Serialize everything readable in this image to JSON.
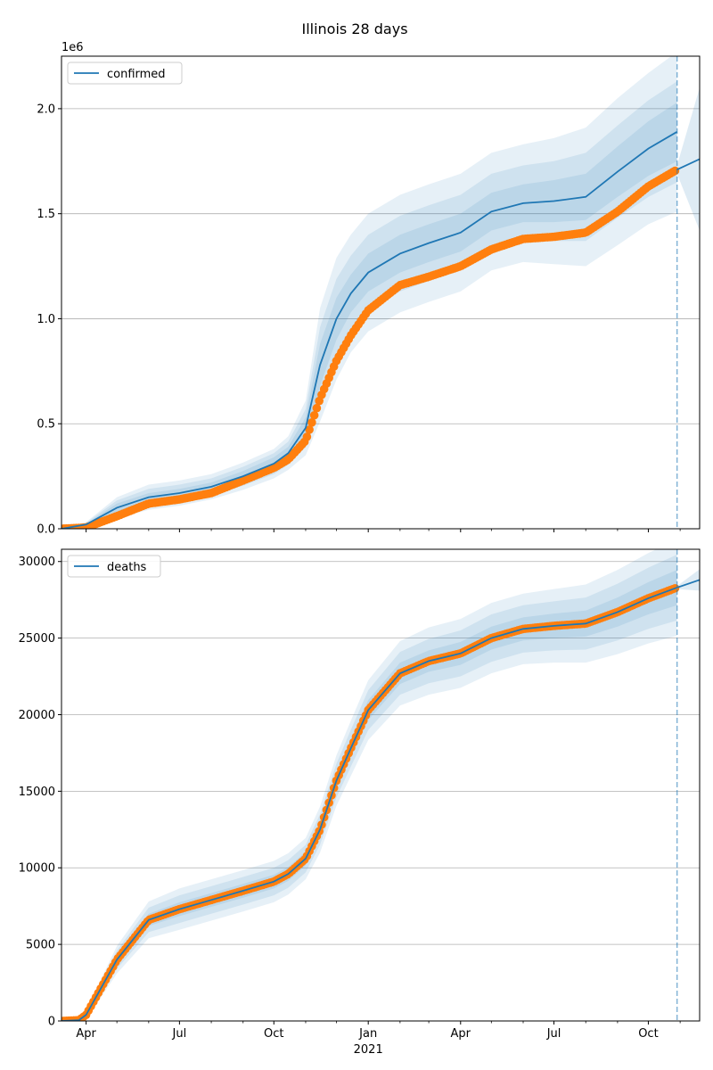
{
  "title": "Illinois 28 days",
  "colors": {
    "fit": "#1f77b4",
    "observed": "#ff7f0e",
    "band": "#1f77b4",
    "grid": "#b0b0b0"
  },
  "x_axis": {
    "start": "2020-03-08",
    "end": "2021-11-20",
    "ticks": [
      {
        "date": "2020-04-01",
        "label": "Apr"
      },
      {
        "date": "2020-07-01",
        "label": "Jul"
      },
      {
        "date": "2020-10-01",
        "label": "Oct"
      },
      {
        "date": "2021-01-01",
        "label": "Jan"
      },
      {
        "date": "2021-04-01",
        "label": "Apr"
      },
      {
        "date": "2021-07-01",
        "label": "Jul"
      },
      {
        "date": "2021-10-01",
        "label": "Oct"
      }
    ],
    "minor_ticks": [
      "2020-05-01",
      "2020-06-01",
      "2020-08-01",
      "2020-09-01",
      "2020-11-01",
      "2020-12-01",
      "2021-02-01",
      "2021-03-01",
      "2021-05-01",
      "2021-06-01",
      "2021-08-01",
      "2021-09-01",
      "2021-11-01"
    ],
    "year_label": "2021",
    "year_label_date": "2021-01-01"
  },
  "chart_data": [
    {
      "type": "line",
      "name": "confirmed",
      "legend": "confirmed",
      "legend_placement": "top-left",
      "grid": "horizontal",
      "offset_label": "1e6",
      "ylim": [
        0,
        2.25
      ],
      "yticks": [
        {
          "value": 0.0,
          "label": "0.0"
        },
        {
          "value": 0.5,
          "label": "0.5"
        },
        {
          "value": 1.0,
          "label": "1.0"
        },
        {
          "value": 1.5,
          "label": "1.5"
        },
        {
          "value": 2.0,
          "label": "2.0"
        }
      ],
      "forecast_date": "2021-10-29",
      "fit": {
        "x": [
          "2020-03-08",
          "2020-04-01",
          "2020-05-01",
          "2020-06-01",
          "2020-07-01",
          "2020-08-01",
          "2020-09-01",
          "2020-10-01",
          "2020-10-15",
          "2020-11-01",
          "2020-11-15",
          "2020-12-01",
          "2020-12-15",
          "2021-01-01",
          "2021-02-01",
          "2021-03-01",
          "2021-04-01",
          "2021-05-01",
          "2021-06-01",
          "2021-07-01",
          "2021-08-01",
          "2021-09-01",
          "2021-10-01",
          "2021-10-29"
        ],
        "y": [
          0.0,
          0.02,
          0.1,
          0.15,
          0.17,
          0.2,
          0.25,
          0.31,
          0.36,
          0.48,
          0.78,
          1.0,
          1.12,
          1.22,
          1.31,
          1.36,
          1.41,
          1.51,
          1.55,
          1.56,
          1.58,
          1.7,
          1.81,
          1.89
        ],
        "band_inner_halfwidth": [
          0.0,
          0.004,
          0.02,
          0.02,
          0.02,
          0.02,
          0.025,
          0.03,
          0.03,
          0.05,
          0.1,
          0.1,
          0.09,
          0.09,
          0.09,
          0.09,
          0.09,
          0.09,
          0.09,
          0.1,
          0.11,
          0.12,
          0.13,
          0.14
        ],
        "band_mid_halfwidth": [
          0.0,
          0.008,
          0.035,
          0.04,
          0.04,
          0.04,
          0.045,
          0.05,
          0.055,
          0.09,
          0.18,
          0.19,
          0.18,
          0.18,
          0.18,
          0.18,
          0.18,
          0.18,
          0.18,
          0.19,
          0.21,
          0.22,
          0.23,
          0.24
        ],
        "band_outer_halfwidth": [
          0.0,
          0.012,
          0.05,
          0.06,
          0.06,
          0.06,
          0.065,
          0.07,
          0.08,
          0.13,
          0.27,
          0.29,
          0.28,
          0.28,
          0.28,
          0.28,
          0.28,
          0.28,
          0.28,
          0.3,
          0.33,
          0.35,
          0.36,
          0.38
        ]
      },
      "forecast": {
        "x": [
          "2021-10-29",
          "2021-11-20"
        ],
        "y": [
          1.71,
          1.76
        ],
        "band_halfwidth": [
          0.02,
          0.34
        ]
      },
      "observed": {
        "x": [
          "2020-03-08",
          "2020-04-01",
          "2020-05-01",
          "2020-06-01",
          "2020-07-01",
          "2020-08-01",
          "2020-09-01",
          "2020-10-01",
          "2020-10-15",
          "2020-11-01",
          "2020-11-15",
          "2020-12-01",
          "2020-12-15",
          "2021-01-01",
          "2021-02-01",
          "2021-03-01",
          "2021-04-01",
          "2021-05-01",
          "2021-06-01",
          "2021-07-01",
          "2021-08-01",
          "2021-09-01",
          "2021-10-01",
          "2021-10-29"
        ],
        "y": [
          0.0,
          0.006,
          0.06,
          0.12,
          0.14,
          0.17,
          0.23,
          0.29,
          0.33,
          0.42,
          0.62,
          0.8,
          0.92,
          1.04,
          1.16,
          1.2,
          1.25,
          1.33,
          1.38,
          1.39,
          1.41,
          1.51,
          1.63,
          1.71
        ]
      }
    },
    {
      "type": "line",
      "name": "deaths",
      "legend": "deaths",
      "legend_placement": "top-left",
      "grid": "horizontal",
      "ylim": [
        0,
        30800
      ],
      "yticks": [
        {
          "value": 0,
          "label": "0"
        },
        {
          "value": 5000,
          "label": "5000"
        },
        {
          "value": 10000,
          "label": "10000"
        },
        {
          "value": 15000,
          "label": "15000"
        },
        {
          "value": 20000,
          "label": "20000"
        },
        {
          "value": 25000,
          "label": "25000"
        },
        {
          "value": 30000,
          "label": "30000"
        }
      ],
      "forecast_date": "2021-10-29",
      "fit": {
        "x": [
          "2020-03-08",
          "2020-03-25",
          "2020-04-01",
          "2020-05-01",
          "2020-06-01",
          "2020-07-01",
          "2020-08-01",
          "2020-09-01",
          "2020-10-01",
          "2020-10-15",
          "2020-11-01",
          "2020-11-15",
          "2020-12-01",
          "2020-12-15",
          "2021-01-01",
          "2021-02-01",
          "2021-03-01",
          "2021-04-01",
          "2021-05-01",
          "2021-06-01",
          "2021-07-01",
          "2021-08-01",
          "2021-09-01",
          "2021-10-01",
          "2021-10-29"
        ],
        "y": [
          0,
          50,
          400,
          4000,
          6600,
          7300,
          7900,
          8500,
          9100,
          9600,
          10600,
          12500,
          15700,
          17800,
          20300,
          22700,
          23500,
          24000,
          25000,
          25600,
          25800,
          25950,
          26700,
          27600,
          28300
        ],
        "band_inner_halfwidth": [
          0,
          20,
          100,
          300,
          400,
          450,
          450,
          450,
          450,
          450,
          450,
          500,
          550,
          600,
          650,
          700,
          700,
          750,
          750,
          750,
          800,
          850,
          950,
          1050,
          1150
        ],
        "band_mid_halfwidth": [
          0,
          40,
          200,
          600,
          800,
          900,
          900,
          900,
          900,
          900,
          900,
          1000,
          1100,
          1200,
          1300,
          1400,
          1450,
          1500,
          1550,
          1550,
          1600,
          1700,
          1850,
          2000,
          2150
        ],
        "band_outer_halfwidth": [
          0,
          60,
          300,
          900,
          1200,
          1350,
          1350,
          1350,
          1350,
          1350,
          1350,
          1500,
          1650,
          1800,
          1950,
          2100,
          2200,
          2250,
          2300,
          2300,
          2400,
          2550,
          2750,
          2950,
          3150
        ]
      },
      "forecast": {
        "x": [
          "2021-10-29",
          "2021-11-20"
        ],
        "y": [
          28300,
          28800
        ],
        "band_halfwidth": [
          100,
          700
        ]
      },
      "observed": {
        "x": [
          "2020-03-08",
          "2020-03-25",
          "2020-04-01",
          "2020-05-01",
          "2020-06-01",
          "2020-07-01",
          "2020-08-01",
          "2020-09-01",
          "2020-10-01",
          "2020-10-15",
          "2020-11-01",
          "2020-11-15",
          "2020-12-01",
          "2020-12-15",
          "2021-01-01",
          "2021-02-01",
          "2021-03-01",
          "2021-04-01",
          "2021-05-01",
          "2021-06-01",
          "2021-07-01",
          "2021-08-01",
          "2021-09-01",
          "2021-10-01",
          "2021-10-29"
        ],
        "y": [
          0,
          50,
          400,
          4000,
          6600,
          7300,
          7900,
          8500,
          9100,
          9600,
          10600,
          12500,
          15700,
          17800,
          20300,
          22700,
          23500,
          24000,
          25000,
          25600,
          25800,
          25950,
          26700,
          27600,
          28300
        ]
      }
    }
  ]
}
